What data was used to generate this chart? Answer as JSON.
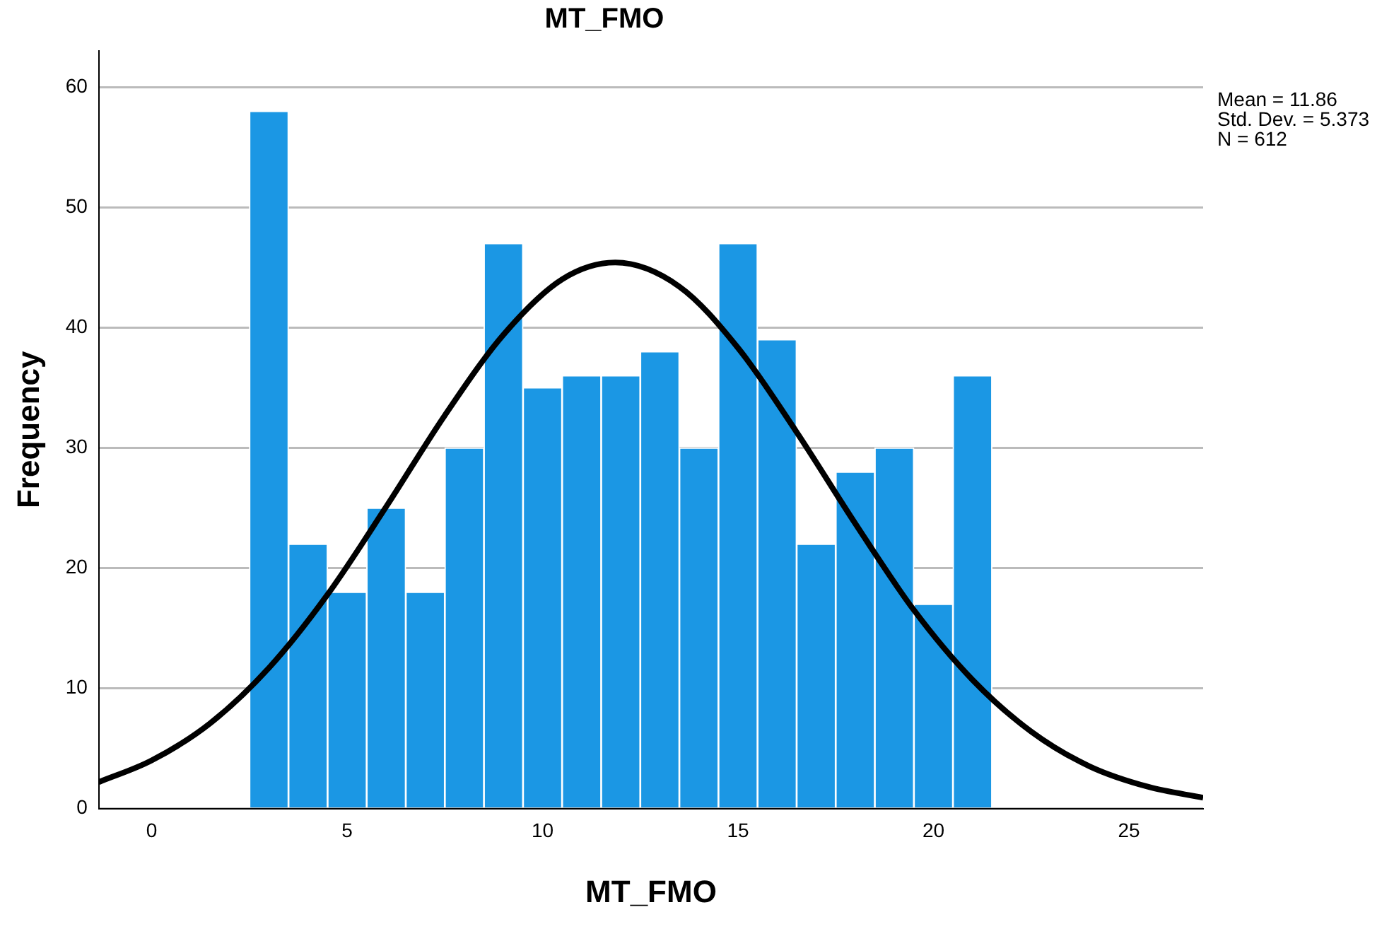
{
  "chart_data": {
    "type": "histogram",
    "title": "MT_FMO",
    "xlabel": "MT_FMO",
    "ylabel": "Frequency",
    "bins": [
      2.5,
      3.5,
      4.5,
      5.5,
      6.5,
      7.5,
      8.5,
      9.5,
      10.5,
      11.5,
      12.5,
      13.5,
      14.5,
      15.5,
      16.5,
      17.5,
      18.5,
      19.5,
      20.5,
      21.5
    ],
    "values": [
      58,
      22,
      18,
      25,
      18,
      30,
      47,
      35,
      36,
      36,
      38,
      30,
      47,
      39,
      22,
      28,
      30,
      17,
      36
    ],
    "color": "#1b97e4",
    "series": [
      {
        "type": "line",
        "color": "#000000",
        "x": [
          -1.35,
          0,
          1.5,
          3,
          4.5,
          6,
          7.5,
          9,
          10.5,
          11.86,
          13.5,
          15,
          16.5,
          18,
          19.5,
          21,
          22.5,
          24,
          25.5,
          26.9
        ],
        "values": [
          2.2,
          4.0,
          7.1,
          11.7,
          17.8,
          25.1,
          32.7,
          39.4,
          44.0,
          45.4,
          43.4,
          38.3,
          31.3,
          23.7,
          16.5,
          10.7,
          6.4,
          3.5,
          1.8,
          0.9
        ]
      }
    ],
    "xlim": [
      -1.35,
      26.9
    ],
    "xticks": [
      0,
      5,
      10,
      15,
      20,
      25
    ],
    "ylim": [
      0,
      63
    ],
    "yticks": [
      0,
      10,
      20,
      30,
      40,
      50,
      60
    ],
    "grid": "y",
    "legend": false,
    "annotations": [
      "Mean = 11.86",
      "Std. Dev. = 5.373",
      "N = 612"
    ]
  }
}
